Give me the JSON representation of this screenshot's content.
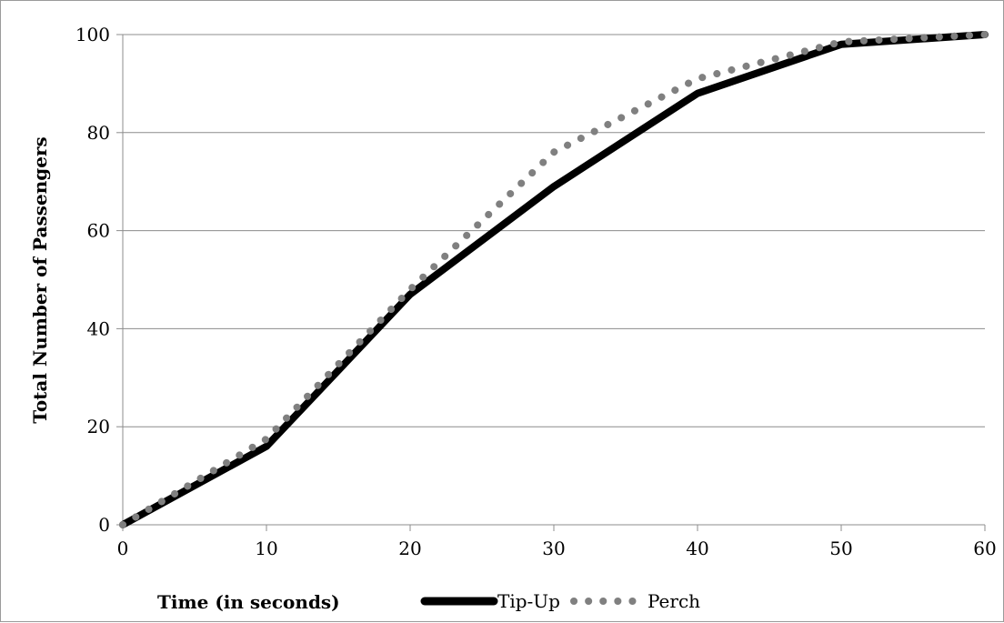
{
  "chart_data": {
    "type": "line",
    "title": "",
    "xlabel": "Time (in seconds)",
    "ylabel": "Total Number of Passengers",
    "xlim": [
      0,
      60
    ],
    "ylim": [
      0,
      100
    ],
    "x_ticks": [
      "0",
      "10",
      "20",
      "30",
      "40",
      "50",
      "60"
    ],
    "y_ticks": [
      "0",
      "20",
      "40",
      "60",
      "80",
      "100"
    ],
    "grid": "horizontal",
    "legend_placement": "bottom",
    "series": [
      {
        "name": "Tip-Up",
        "style": "solid",
        "color": "#000000",
        "x": [
          0,
          10,
          20,
          30,
          40,
          50,
          60
        ],
        "y": [
          0,
          16,
          47,
          69,
          88,
          98,
          100
        ]
      },
      {
        "name": "Perch",
        "style": "dotted",
        "color": "#808080",
        "x": [
          0,
          10,
          20,
          30,
          40,
          50,
          60
        ],
        "y": [
          0,
          17.5,
          48,
          76,
          91,
          98.5,
          100
        ]
      }
    ]
  }
}
